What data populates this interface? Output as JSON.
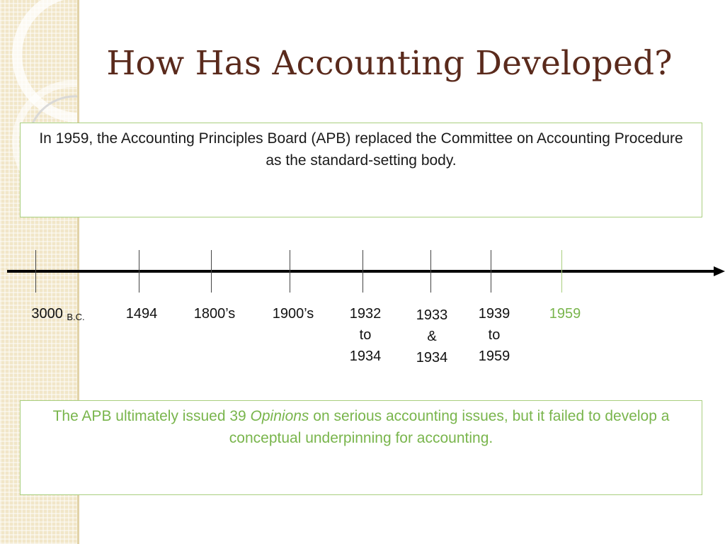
{
  "slide": {
    "title": "How Has Accounting Developed?",
    "colors": {
      "title": "#5a2a1c",
      "accent_green": "#79b54c",
      "box_border": "#a9cf7f",
      "side_strip": "#f1e6c8"
    }
  },
  "top_box": {
    "text": "In 1959, the Accounting Principles Board (APB) replaced the Committee on Accounting Procedure as the standard-setting body."
  },
  "timeline": {
    "labels": [
      {
        "main": "3000",
        "sub": "B.C."
      },
      {
        "main": "1494"
      },
      {
        "main": "1800’s"
      },
      {
        "main": "1900’s"
      },
      {
        "line1": "1932",
        "line2": "to",
        "line3": "1934"
      },
      {
        "line1": "1933",
        "line2": "&",
        "line3": "1934"
      },
      {
        "line1": "1939",
        "line2": "to",
        "line3": "1959"
      },
      {
        "main": "1959"
      }
    ]
  },
  "bottom_box": {
    "text_before": "The APB ultimately issued 39 ",
    "text_italic": "Opinions",
    "text_after": " on serious accounting issues, but it failed to develop a conceptual underpinning for accounting."
  }
}
